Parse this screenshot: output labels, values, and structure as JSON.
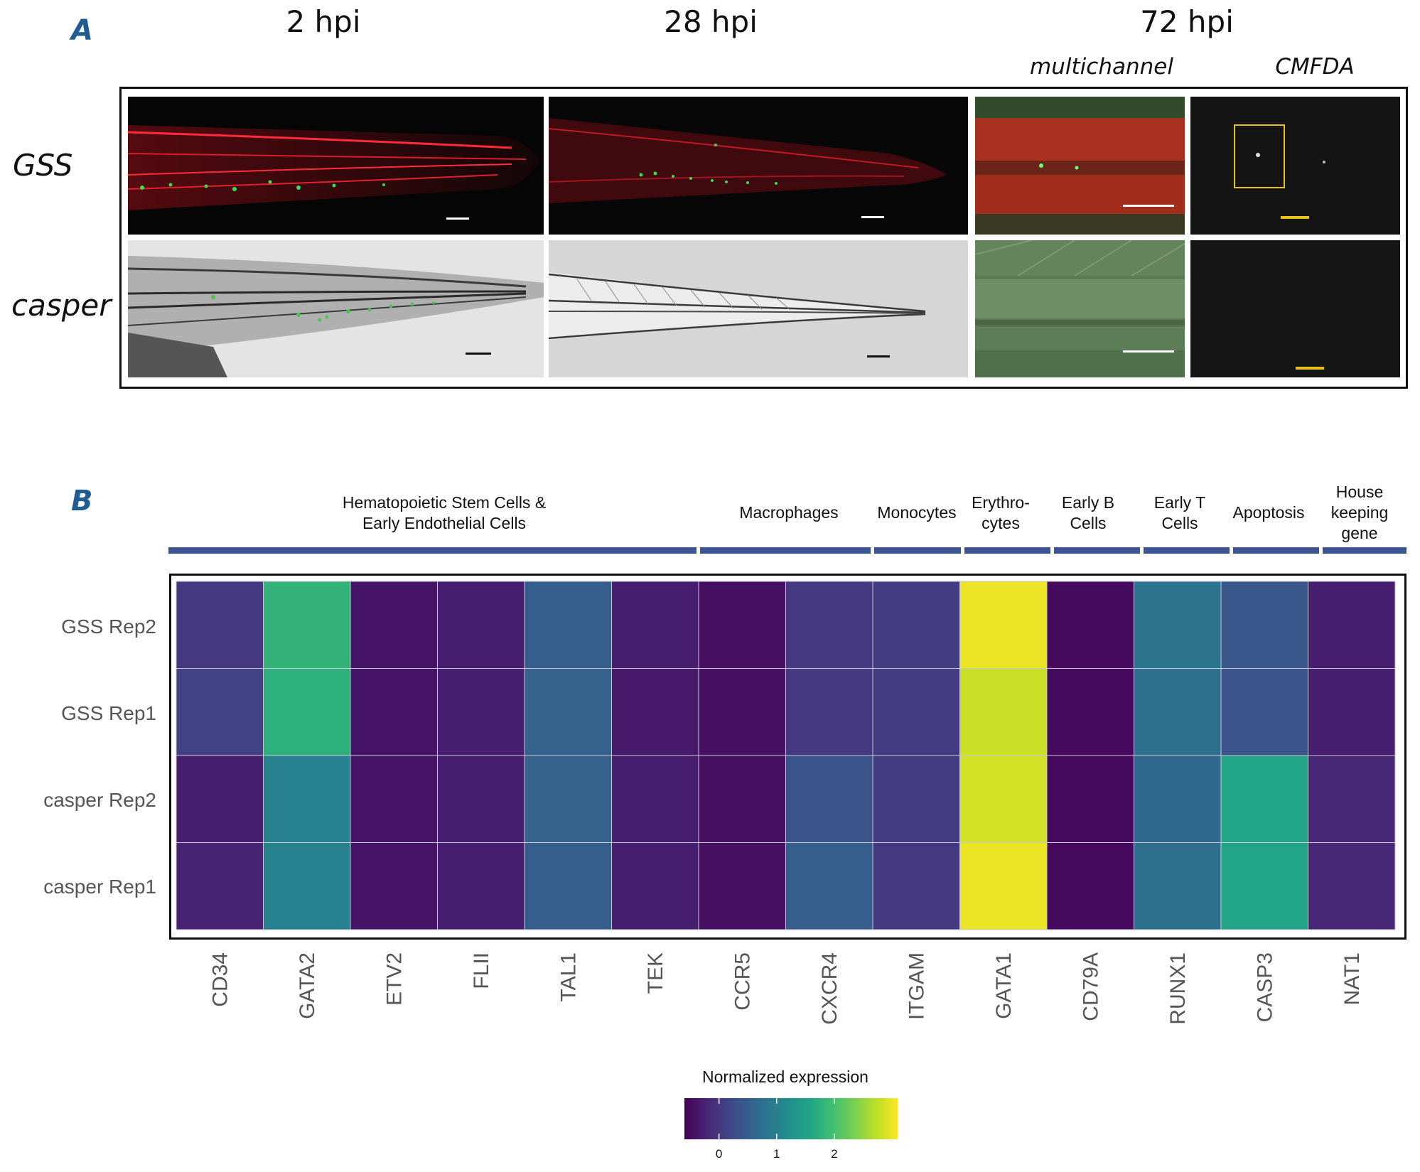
{
  "panel_a": {
    "letter": "A",
    "time_labels": [
      "2 hpi",
      "28 hpi",
      "72 hpi"
    ],
    "sub_labels": [
      "multichannel",
      "CMFDA"
    ],
    "row_labels": [
      "GSS",
      "casper"
    ]
  },
  "panel_b": {
    "letter": "B",
    "group_labels": [
      "Hematopoietic Stem Cells & Early Endothelial Cells",
      "Macrophages",
      "Monocytes",
      "Erythro- cytes",
      "Early B Cells",
      "Early T Cells",
      "Apoptosis",
      "House keeping gene"
    ]
  },
  "chart_data": {
    "type": "heatmap",
    "rows": [
      "GSS Rep2",
      "GSS Rep1",
      "casper Rep2",
      "casper Rep1"
    ],
    "columns": [
      "CD34",
      "GATA2",
      "ETV2",
      "FLII",
      "TAL1",
      "TEK",
      "CCR5",
      "CXCR4",
      "ITGAM",
      "GATA1",
      "CD79A",
      "RUNX1",
      "CASP3",
      "NAT1"
    ],
    "values": [
      [
        0.0,
        1.8,
        -0.4,
        -0.3,
        0.5,
        -0.3,
        -0.45,
        0.0,
        0.05,
        3.0,
        -0.5,
        0.8,
        0.4,
        -0.3
      ],
      [
        0.1,
        1.75,
        -0.4,
        -0.3,
        0.55,
        -0.35,
        -0.45,
        0.0,
        0.05,
        2.8,
        -0.5,
        0.75,
        0.35,
        -0.3
      ],
      [
        -0.3,
        1.0,
        -0.4,
        -0.3,
        0.55,
        -0.3,
        -0.45,
        0.35,
        0.05,
        2.85,
        -0.5,
        0.65,
        1.55,
        -0.2
      ],
      [
        -0.25,
        1.0,
        -0.4,
        -0.3,
        0.5,
        -0.3,
        -0.45,
        0.5,
        0.0,
        3.0,
        -0.5,
        0.75,
        1.55,
        -0.2
      ]
    ],
    "groups": [
      {
        "label": "Hematopoietic Stem Cells & Early Endothelial Cells",
        "columns": [
          "CD34",
          "GATA2",
          "ETV2",
          "FLII",
          "TAL1",
          "TEK"
        ]
      },
      {
        "label": "Macrophages",
        "columns": [
          "CCR5",
          "CXCR4"
        ]
      },
      {
        "label": "Monocytes",
        "columns": [
          "ITGAM"
        ]
      },
      {
        "label": "Erythro- cytes",
        "columns": [
          "GATA1"
        ]
      },
      {
        "label": "Early B Cells",
        "columns": [
          "CD79A"
        ]
      },
      {
        "label": "Early T Cells",
        "columns": [
          "RUNX1"
        ]
      },
      {
        "label": "Apoptosis",
        "columns": [
          "CASP3"
        ]
      },
      {
        "label": "House keeping gene",
        "columns": [
          "NAT1"
        ]
      }
    ],
    "colorbar": {
      "title": "Normalized expression",
      "colormap": "viridis",
      "range": [
        -0.6,
        3.1
      ],
      "ticks": [
        0,
        1,
        2
      ]
    }
  },
  "colors": {
    "accent": "#1f5c91",
    "group_bar": "#3b5592",
    "scale_yellow": "#e8c21a"
  }
}
